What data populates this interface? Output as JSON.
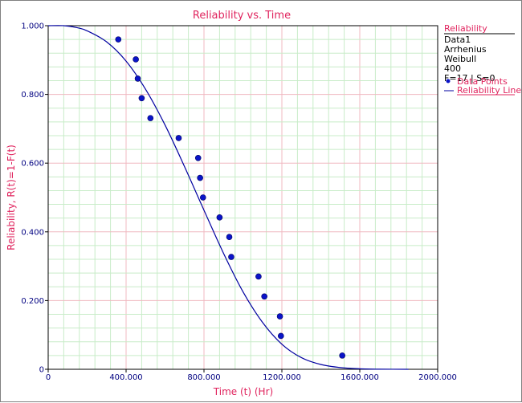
{
  "chart_data": {
    "type": "scatter",
    "title": "Reliability vs. Time",
    "xlabel": "Time (t) (Hr)",
    "ylabel": "Reliability, R(t)=1-F(t)",
    "xlim": [
      0,
      2000
    ],
    "ylim": [
      0,
      1
    ],
    "x_ticks": [
      0,
      400,
      800,
      1200,
      1600,
      2000
    ],
    "x_tick_labels": [
      "0",
      "400.000",
      "800.000",
      "1200.000",
      "1600.000",
      "2000.000"
    ],
    "y_ticks": [
      0,
      0.2,
      0.4,
      0.6,
      0.8,
      1.0
    ],
    "y_tick_labels": [
      "0",
      "0.200",
      "0.400",
      "0.600",
      "0.800",
      "1.000"
    ],
    "grid": true,
    "legend": {
      "position": "right",
      "title": "Reliability",
      "info_lines": [
        "Data1",
        "Arrhenius",
        "Weibull",
        "400",
        "F=17 | S=0"
      ],
      "entries": [
        "Data Points",
        "Reliability Line"
      ]
    },
    "series": [
      {
        "name": "Data Points",
        "type": "scatter",
        "points": [
          [
            360,
            0.96
          ],
          [
            450,
            0.902
          ],
          [
            460,
            0.846
          ],
          [
            480,
            0.789
          ],
          [
            525,
            0.731
          ],
          [
            670,
            0.673
          ],
          [
            770,
            0.615
          ],
          [
            780,
            0.557
          ],
          [
            795,
            0.5
          ],
          [
            880,
            0.442
          ],
          [
            930,
            0.385
          ],
          [
            940,
            0.327
          ],
          [
            1080,
            0.27
          ],
          [
            1110,
            0.212
          ],
          [
            1190,
            0.154
          ],
          [
            1195,
            0.097
          ],
          [
            1510,
            0.04
          ]
        ]
      },
      {
        "name": "Reliability Line",
        "type": "line",
        "points": [
          [
            0,
            1.0
          ],
          [
            80,
            1.0
          ],
          [
            150,
            0.994
          ],
          [
            200,
            0.985
          ],
          [
            300,
            0.953
          ],
          [
            400,
            0.897
          ],
          [
            500,
            0.815
          ],
          [
            600,
            0.711
          ],
          [
            700,
            0.59
          ],
          [
            800,
            0.463
          ],
          [
            900,
            0.338
          ],
          [
            1000,
            0.226
          ],
          [
            1100,
            0.137
          ],
          [
            1200,
            0.073
          ],
          [
            1300,
            0.034
          ],
          [
            1400,
            0.014
          ],
          [
            1500,
            0.005
          ],
          [
            1600,
            0.0015
          ],
          [
            1700,
            0.0003
          ],
          [
            1850,
            0.0
          ]
        ]
      }
    ],
    "colors": {
      "title": "#e0245e",
      "axis_label": "#e0245e",
      "tick_label": "#000080",
      "major_grid": "#f0b8c0",
      "minor_grid": "#c8ecc8",
      "points": "#0a14c8",
      "line": "#0000a0",
      "legend_title": "#e0245e",
      "legend_entry": "#e0245e"
    }
  }
}
